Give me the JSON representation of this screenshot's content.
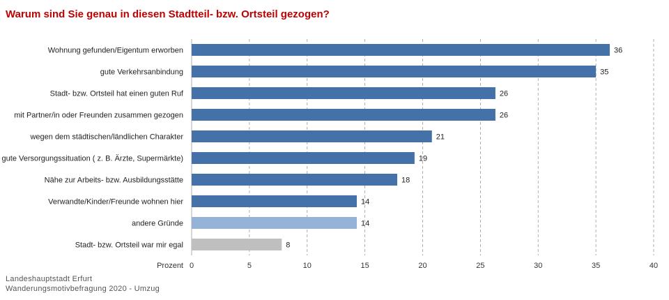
{
  "chart_data": {
    "type": "bar",
    "orientation": "horizontal",
    "title": "Warum sind Sie genau in diesen Stadtteil- bzw. Ortsteil gezogen?",
    "xlabel": "Prozent",
    "xlim": [
      0,
      40
    ],
    "xticks": [
      "0",
      "5",
      "10",
      "15",
      "20",
      "25",
      "30",
      "35",
      "40"
    ],
    "grid": "vertical dashed",
    "categories": [
      "Wohnung gefunden/Eigentum erworben",
      "gute Verkehrsanbindung",
      "Stadt- bzw. Ortsteil hat einen guten Ruf",
      "mit Partner/in oder Freunden zusammen gezogen",
      "wegen dem städtischen/ländlichen Charakter",
      "gute Versorgungssituation ( z. B. Ärzte, Supermärkte)",
      "Nähe zur Arbeits- bzw. Ausbildungsstätte",
      "Verwandte/Kinder/Freunde wohnen hier",
      "andere Gründe",
      "Stadt- bzw. Ortsteil war mir egal"
    ],
    "values": [
      36,
      35,
      26,
      26,
      21,
      19,
      18,
      14,
      14,
      8
    ],
    "value_labels": [
      "36",
      "35",
      "26",
      "26",
      "21",
      "19",
      "18",
      "14",
      "14",
      "8"
    ],
    "bar_values": [
      36.2,
      35.0,
      26.3,
      26.3,
      20.8,
      19.3,
      17.8,
      14.3,
      14.3,
      7.8
    ],
    "colors": [
      "#4472a8",
      "#4472a8",
      "#4472a8",
      "#4472a8",
      "#4472a8",
      "#4472a8",
      "#4472a8",
      "#4472a8",
      "#95b3d7",
      "#bfbfbf"
    ]
  },
  "source": {
    "line1": "Landeshauptstadt Erfurt",
    "line2": "Wanderungsmotivbefragung 2020 - Umzug"
  },
  "colors": {
    "title": "#c00000",
    "primary_bar": "#4472a8",
    "other_bar": "#95b3d7",
    "neutral_bar": "#bfbfbf"
  }
}
